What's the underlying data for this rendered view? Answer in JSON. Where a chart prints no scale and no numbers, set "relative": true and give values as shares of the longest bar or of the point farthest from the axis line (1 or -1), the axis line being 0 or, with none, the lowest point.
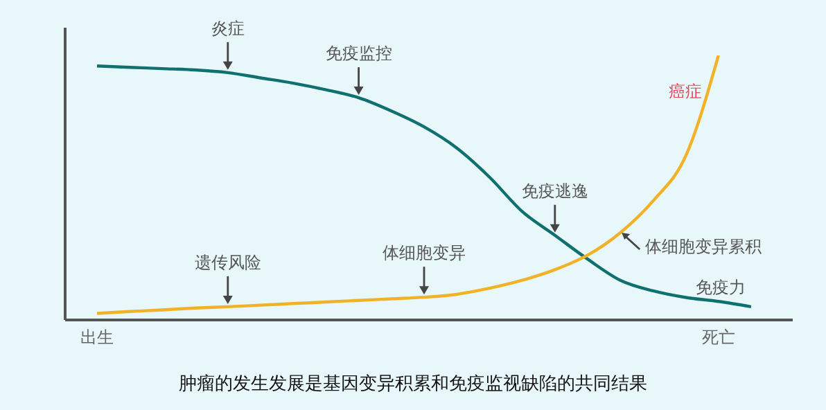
{
  "chart_data": {
    "type": "line",
    "relative": true,
    "title": "肿瘤的发生发展是基因变异积累和免疫监视缺陷的共同结果",
    "categories": [
      "出生",
      null,
      null,
      null,
      null,
      null,
      null,
      null,
      null,
      null,
      null,
      null,
      null,
      null,
      null,
      null,
      null,
      null,
      null,
      "死亡",
      null
    ],
    "series": [
      {
        "name": "免疫力",
        "color": "#10706f",
        "values": [
          0.96,
          0.955,
          0.95,
          0.945,
          0.935,
          0.915,
          0.895,
          0.87,
          0.84,
          0.79,
          0.73,
          0.65,
          0.54,
          0.41,
          0.32,
          0.23,
          0.15,
          0.11,
          0.085,
          0.07,
          0.05
        ]
      },
      {
        "name": "癌症",
        "color": "#f2b227",
        "values": [
          0.025,
          0.032,
          0.038,
          0.045,
          0.05,
          0.056,
          0.062,
          0.068,
          0.074,
          0.08,
          0.086,
          0.097,
          0.12,
          0.15,
          0.19,
          0.245,
          0.33,
          0.45,
          0.62,
          1.0,
          null
        ]
      }
    ],
    "annotations": [
      "炎症",
      "免疫监控",
      "免疫逃逸",
      "遗传风险",
      "体细胞变异",
      "体细胞变异累积"
    ],
    "legend": false,
    "grid": false
  }
}
